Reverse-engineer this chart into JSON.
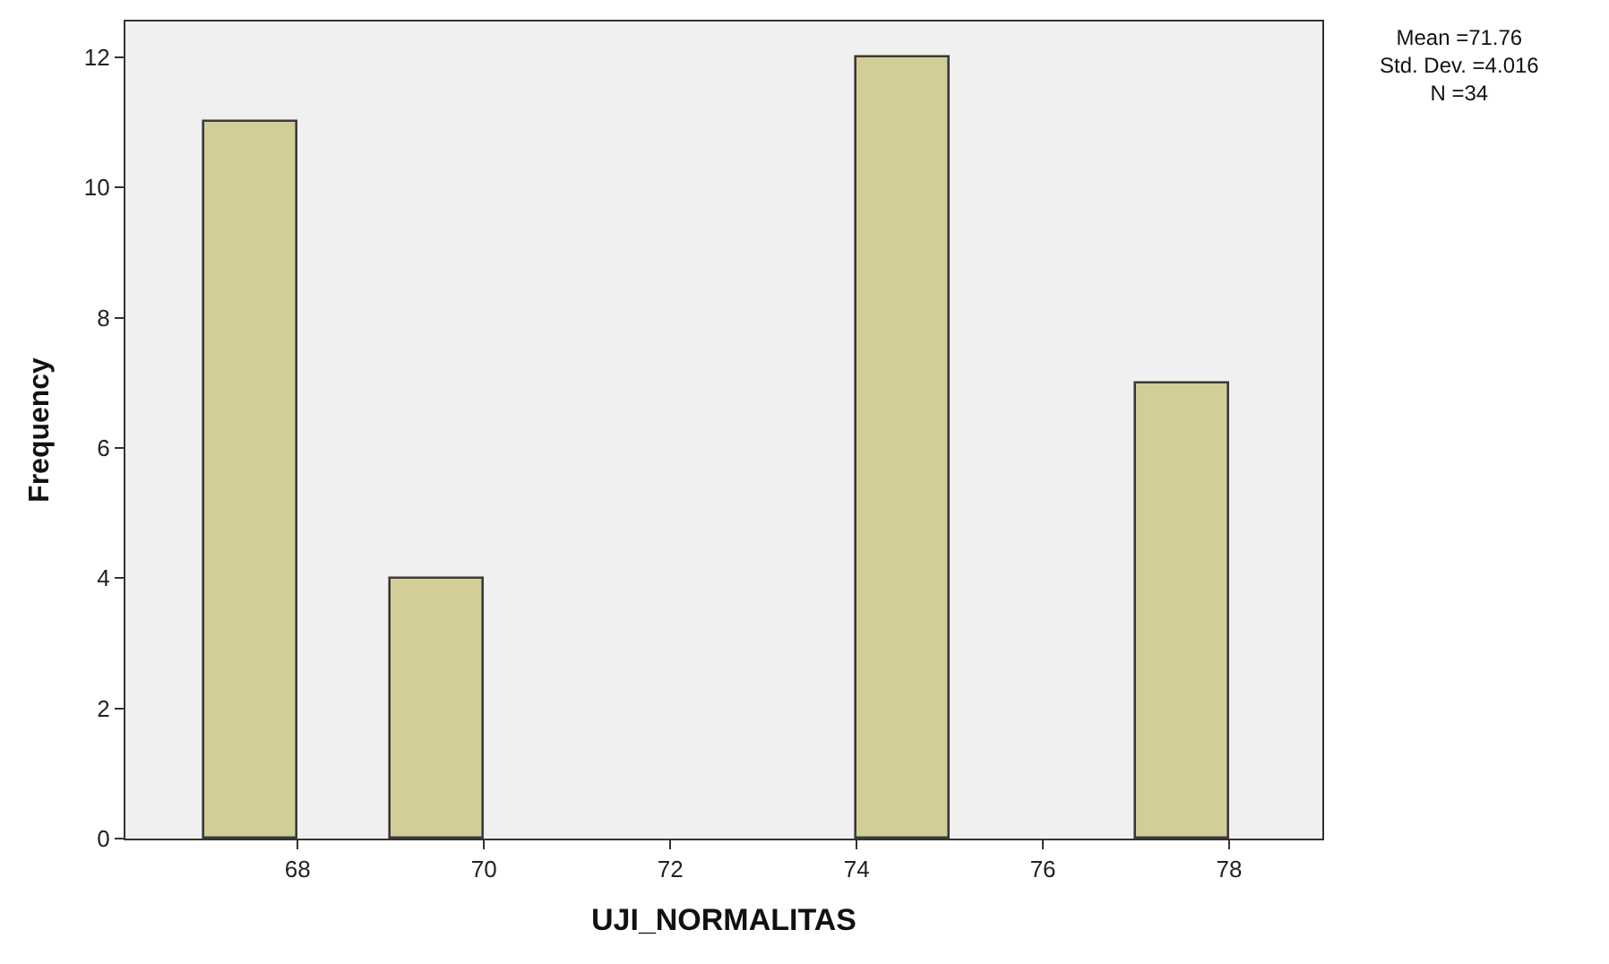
{
  "chart_data": {
    "type": "histogram",
    "xlabel": "UJI_NORMALITAS",
    "ylabel": "Frequency",
    "bins": [
      67,
      68,
      69,
      70,
      71,
      72,
      73,
      74,
      75,
      76,
      77,
      78
    ],
    "values": [
      11,
      0,
      4,
      0,
      0,
      0,
      0,
      12,
      0,
      0,
      7
    ],
    "color": "#d3ce97",
    "xlim": [
      66.15,
      79
    ],
    "xticks": [
      68,
      70,
      72,
      74,
      76,
      78
    ],
    "ylim": [
      0,
      12.55
    ],
    "yticks": [
      0,
      2,
      4,
      6,
      8,
      10,
      12
    ],
    "grid": false,
    "annotations": [
      "Mean =71.76",
      "Std. Dev. =4.016",
      "N =34"
    ]
  }
}
